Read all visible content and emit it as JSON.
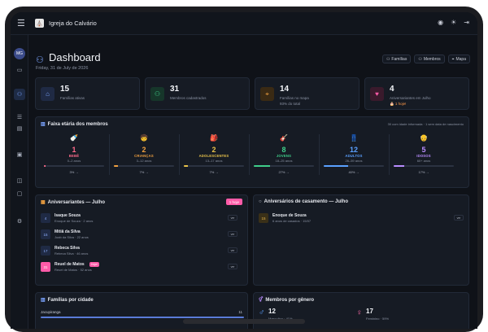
{
  "topbar": {
    "menu_icon": "menu-icon",
    "logo_glyph": "⛪",
    "app_name": "Igreja do Calvário"
  },
  "sidebar": {
    "avatar_initials": "MG"
  },
  "header": {
    "title": "Dashboard",
    "date": "Friday, 31 de July de 2026",
    "buttons": [
      {
        "label": "Famílias"
      },
      {
        "label": "Membros"
      },
      {
        "label": "Mapa"
      }
    ]
  },
  "stats": [
    {
      "value": "15",
      "label": "Famílias ativas",
      "sub": "",
      "icon": "home-icon",
      "color": "#7ba4ff"
    },
    {
      "value": "31",
      "label": "Membros cadastrados",
      "sub": "",
      "icon": "users-icon",
      "color": "#3fce8a"
    },
    {
      "value": "14",
      "label": "Famílias no mapa",
      "sub": "93% do total",
      "icon": "map-pin-icon",
      "color": "#f0a040"
    },
    {
      "value": "4",
      "label": "Aniversariantes em Julho",
      "sub": "🎂 1 hoje!",
      "icon": "heart-icon",
      "color": "#ff5ba8"
    }
  ],
  "age_groups": {
    "title": "Faixa etária dos membros",
    "note": "30 com idade informada · 1 sem data de nascimento",
    "groups": [
      {
        "emoji": "🍼",
        "count": "1",
        "name": "BEBÊ",
        "range": "0–2 anos",
        "pct": "3% →",
        "pct_value": 3,
        "color": "#ff6a8a"
      },
      {
        "emoji": "🧒",
        "count": "2",
        "name": "CRIANÇAS",
        "range": "3–12 anos",
        "pct": "7% →",
        "pct_value": 7,
        "color": "#f0a040"
      },
      {
        "emoji": "🎒",
        "count": "2",
        "name": "ADOLESCENTES",
        "range": "13–17 anos",
        "pct": "7% →",
        "pct_value": 7,
        "color": "#e8c24a"
      },
      {
        "emoji": "🎸",
        "count": "8",
        "name": "JOVENS",
        "range": "18–25 anos",
        "pct": "27% →",
        "pct_value": 27,
        "color": "#3fce8a"
      },
      {
        "emoji": "👖",
        "count": "12",
        "name": "ADULTOS",
        "range": "26–59 anos",
        "pct": "40% →",
        "pct_value": 40,
        "color": "#5aa0ff"
      },
      {
        "emoji": "👴",
        "count": "5",
        "name": "IDOSOS",
        "range": "60+ anos",
        "pct": "17% →",
        "pct_value": 17,
        "color": "#b98cff"
      }
    ]
  },
  "birthdays": {
    "title": "Aniversariantes — Julho",
    "badge": "1 hoje",
    "today_tag": "Hoje!",
    "items": [
      {
        "day": "4",
        "name": "Isaque Souza",
        "sub": "Enoque de Souza · 2 anos",
        "btn": "ver"
      },
      {
        "day": "15",
        "name": "Mitiã da Silva",
        "sub": "Joab da Silva · 22 anos",
        "btn": "ver"
      },
      {
        "day": "17",
        "name": "Rebeca Silva",
        "sub": "Rebeca Silva · 46 anos",
        "btn": "ver"
      },
      {
        "day": "31",
        "name": "Reuel de Matos",
        "sub": "Reuel de Matos · 52 anos",
        "btn": "ver"
      }
    ]
  },
  "weddings": {
    "title": "Aniversários de casamento — Julho",
    "items": [
      {
        "day": "15",
        "name": "Enoque de Souza",
        "sub": "6 anos de casados · 15/07",
        "btn": "ver"
      }
    ]
  },
  "families_by_city": {
    "title": "Famílias por cidade",
    "rows": [
      {
        "city": "Jacupiranga",
        "count": "11"
      }
    ]
  },
  "members_by_gender": {
    "title": "Membros por gênero",
    "male": {
      "count": "12",
      "label": "Masculino · 41%"
    },
    "female": {
      "count": "17",
      "label": "Feminino · 59%"
    }
  }
}
